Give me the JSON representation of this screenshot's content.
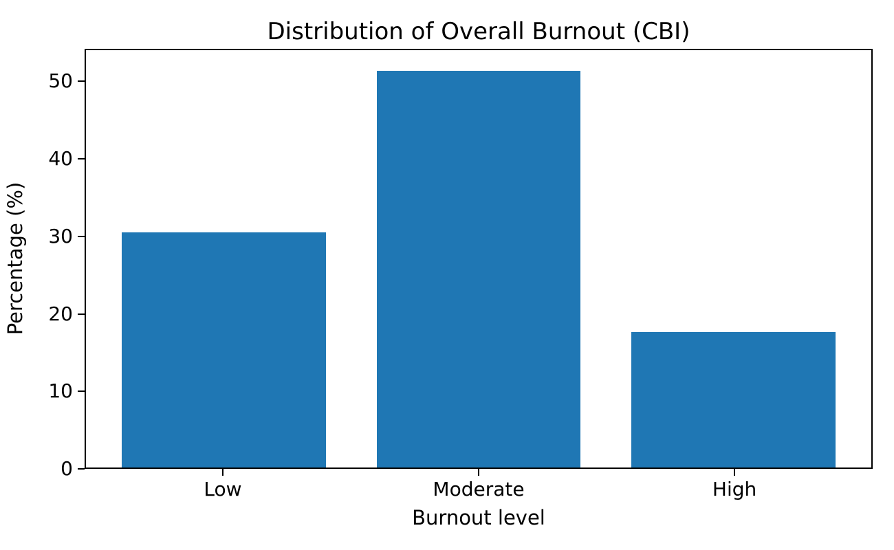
{
  "chart_data": {
    "type": "bar",
    "title": "Distribution of Overall Burnout (CBI)",
    "xlabel": "Burnout level",
    "ylabel": "Percentage (%)",
    "categories": [
      "Low",
      "Moderate",
      "High"
    ],
    "values": [
      30.5,
      51.5,
      17.6
    ],
    "yticks": [
      0,
      10,
      20,
      30,
      40,
      50
    ],
    "ylim": [
      0,
      54.2
    ],
    "bar_color": "#1f77b4",
    "bar_width_fraction": 0.8,
    "x_margin_units": 0.54,
    "grid": false,
    "legend": "none"
  }
}
